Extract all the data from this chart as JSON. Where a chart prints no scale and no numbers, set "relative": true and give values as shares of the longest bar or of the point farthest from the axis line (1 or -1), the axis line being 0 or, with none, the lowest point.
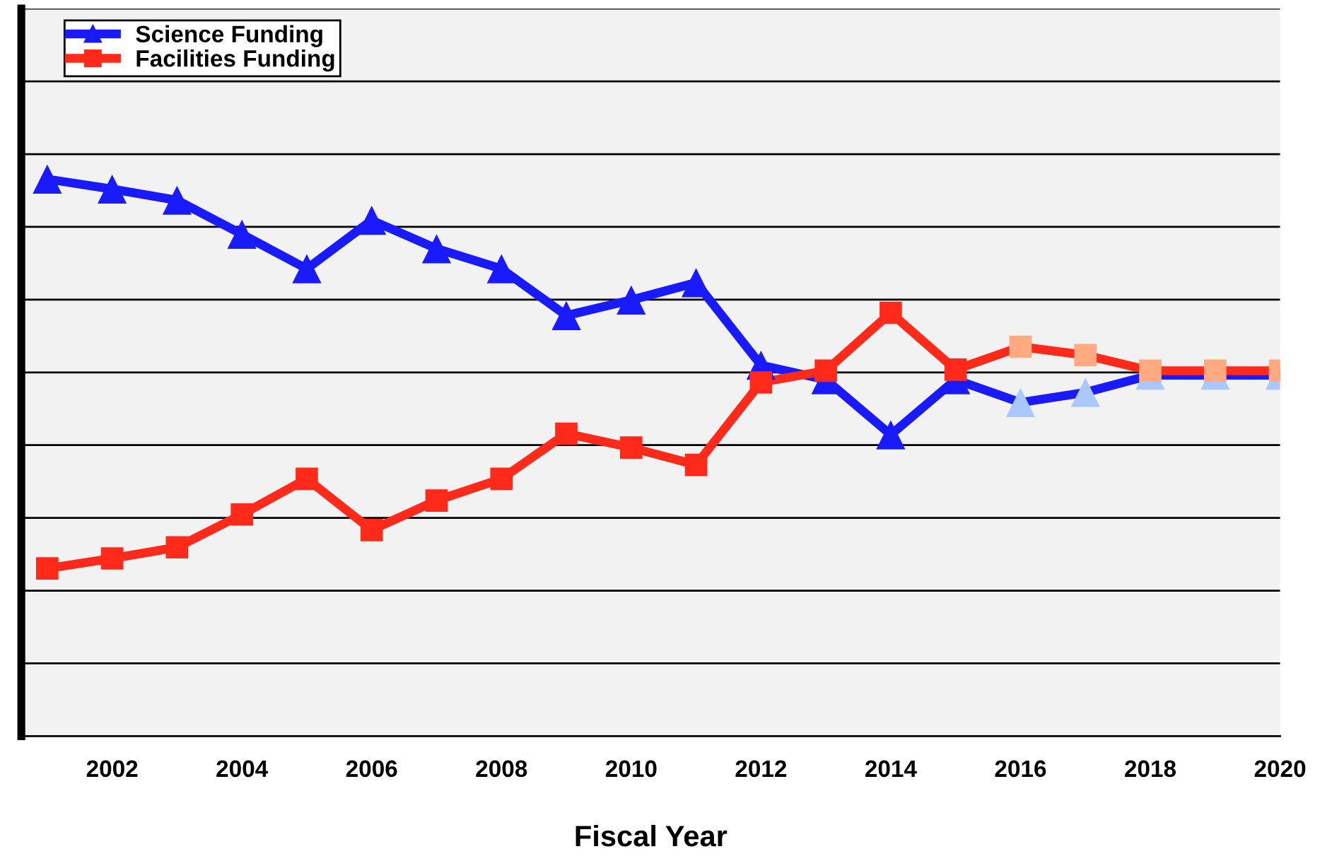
{
  "chart_data": {
    "type": "line",
    "xlabel": "Fiscal Year",
    "relative": true,
    "x": [
      2001,
      2002,
      2003,
      2004,
      2005,
      2006,
      2007,
      2008,
      2009,
      2010,
      2011,
      2012,
      2013,
      2014,
      2015,
      2016,
      2017,
      2018,
      2019,
      2020
    ],
    "xlim": [
      2000.6,
      2020
    ],
    "xticks": [
      2002,
      2004,
      2006,
      2008,
      2010,
      2012,
      2014,
      2016,
      2018,
      2020
    ],
    "series": [
      {
        "name": "Science Funding",
        "color": "#1a1aff",
        "marker": "triangle",
        "colors": [
          "#1a1aff",
          "#1a1aff",
          "#1a1aff",
          "#1a1aff",
          "#1a1aff",
          "#1a1aff",
          "#1a1aff",
          "#1a1aff",
          "#1a1aff",
          "#1a1aff",
          "#1a1aff",
          "#1a1aff",
          "#1a1aff",
          "#1a1aff",
          "#1a1aff",
          "#a8c8ff",
          "#a8c8ff",
          "#a8c8ff",
          "#a8c8ff",
          "#a8c8ff"
        ],
        "values": [
          1.0,
          0.982,
          0.962,
          0.901,
          0.839,
          0.926,
          0.875,
          0.839,
          0.755,
          0.783,
          0.814,
          0.666,
          0.64,
          0.541,
          0.64,
          0.599,
          0.617,
          0.648,
          0.648,
          0.648
        ]
      },
      {
        "name": "Facilities Funding",
        "color": "#ff2a1a",
        "marker": "square",
        "colors": [
          "#ff2a1a",
          "#ff2a1a",
          "#ff2a1a",
          "#ff2a1a",
          "#ff2a1a",
          "#ff2a1a",
          "#ff2a1a",
          "#ff2a1a",
          "#ff2a1a",
          "#ff2a1a",
          "#ff2a1a",
          "#ff2a1a",
          "#ff2a1a",
          "#ff2a1a",
          "#ff2a1a",
          "#ffaa80",
          "#ffaa80",
          "#ffaa80",
          "#ffaa80",
          "#ffaa80"
        ],
        "values": [
          0.301,
          0.319,
          0.339,
          0.398,
          0.462,
          0.37,
          0.423,
          0.462,
          0.543,
          0.518,
          0.487,
          0.635,
          0.656,
          0.76,
          0.658,
          0.699,
          0.684,
          0.656,
          0.656,
          0.656
        ]
      }
    ],
    "grid": "y",
    "legend": "top left",
    "line_style": "solid"
  }
}
